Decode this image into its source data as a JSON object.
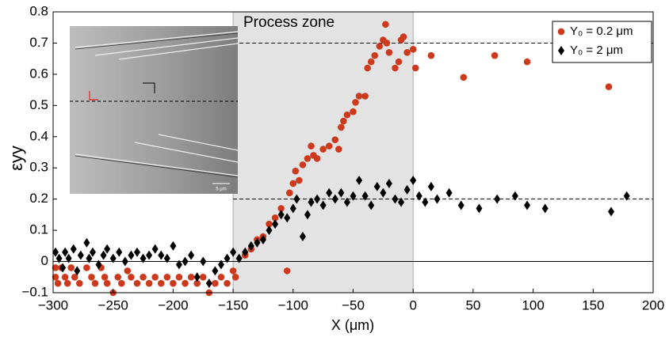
{
  "chart_data": {
    "type": "scatter",
    "annotation": "Process zone",
    "xlabel": "X (μm)",
    "ylabel": "εyy",
    "inset_scale_label": "5 μm",
    "xlim": [
      -300,
      200
    ],
    "ylim": [
      -0.1,
      0.8
    ],
    "xticks": [
      {
        "value": -300,
        "label": "−300"
      },
      {
        "value": -250,
        "label": "−250"
      },
      {
        "value": -200,
        "label": "−200"
      },
      {
        "value": -150,
        "label": "−150"
      },
      {
        "value": -100,
        "label": "−100"
      },
      {
        "value": -50,
        "label": "−50"
      },
      0,
      50,
      100,
      150,
      200
    ],
    "yticks": [
      {
        "value": -0.1,
        "label": "−0.1"
      },
      0,
      0.1,
      0.2,
      0.3,
      0.4,
      0.5,
      0.6,
      0.7,
      0.8
    ],
    "shaded_region": [
      -150,
      0
    ],
    "reference_lines": [
      0.7,
      0.2
    ],
    "legend": "upper right",
    "series": [
      {
        "name": "Y₀ = 0.2 μm",
        "color": "#cc3a1e",
        "marker": "circle",
        "x": [
          -298,
          -298,
          -296,
          -293,
          -290,
          -288,
          -285,
          -282,
          -278,
          -272,
          -268,
          -265,
          -260,
          -257,
          -255,
          -250,
          -246,
          -243,
          -238,
          -235,
          -230,
          -225,
          -220,
          -215,
          -210,
          -205,
          -200,
          -195,
          -190,
          -185,
          -180,
          -175,
          -170,
          -165,
          -160,
          -155,
          -150,
          -148,
          -140,
          -135,
          -130,
          -125,
          -120,
          -115,
          -110,
          -105,
          -103,
          -100,
          -98,
          -95,
          -92,
          -88,
          -85,
          -83,
          -80,
          -75,
          -70,
          -65,
          -62,
          -60,
          -58,
          -55,
          -50,
          -48,
          -45,
          -40,
          -38,
          -35,
          -32,
          -28,
          -25,
          -23,
          -22,
          -20,
          -15,
          -12,
          -10,
          -8,
          -5,
          0,
          2,
          15,
          42,
          68,
          95,
          163
        ],
        "values": [
          -0.02,
          -0.05,
          -0.07,
          -0.02,
          -0.05,
          -0.07,
          -0.02,
          -0.05,
          -0.07,
          -0.02,
          -0.05,
          -0.07,
          -0.02,
          -0.05,
          -0.07,
          -0.1,
          -0.05,
          -0.07,
          -0.03,
          -0.05,
          -0.07,
          -0.05,
          -0.07,
          -0.05,
          -0.07,
          -0.05,
          -0.07,
          -0.05,
          -0.07,
          -0.05,
          -0.07,
          -0.05,
          -0.1,
          -0.07,
          -0.05,
          -0.07,
          -0.03,
          -0.05,
          0.02,
          0.04,
          0.07,
          0.08,
          0.12,
          0.14,
          0.17,
          -0.03,
          0.22,
          0.25,
          0.29,
          0.26,
          0.31,
          0.33,
          0.37,
          0.34,
          0.33,
          0.36,
          0.37,
          0.39,
          0.36,
          0.43,
          0.45,
          0.47,
          0.48,
          0.51,
          0.53,
          0.53,
          0.62,
          0.64,
          0.66,
          0.69,
          0.71,
          0.76,
          0.7,
          0.67,
          0.62,
          0.64,
          0.71,
          0.72,
          0.67,
          0.68,
          0.62,
          0.66,
          0.59,
          0.66,
          0.64,
          0.56
        ]
      },
      {
        "name": "Y₀ = 2 μm",
        "color": "#000000",
        "marker": "diamond",
        "x": [
          -298,
          -295,
          -292,
          -290,
          -287,
          -283,
          -280,
          -277,
          -272,
          -270,
          -267,
          -262,
          -258,
          -255,
          -250,
          -245,
          -240,
          -235,
          -230,
          -225,
          -220,
          -215,
          -210,
          -205,
          -200,
          -195,
          -190,
          -185,
          -180,
          -175,
          -170,
          -165,
          -160,
          -155,
          -150,
          -145,
          -140,
          -135,
          -130,
          -125,
          -120,
          -115,
          -110,
          -105,
          -100,
          -97,
          -92,
          -88,
          -85,
          -80,
          -75,
          -70,
          -65,
          -60,
          -55,
          -50,
          -45,
          -40,
          -35,
          -30,
          -25,
          -20,
          -15,
          -10,
          -5,
          0,
          5,
          10,
          15,
          20,
          30,
          40,
          55,
          70,
          85,
          95,
          110,
          165,
          178
        ],
        "values": [
          0.03,
          0.01,
          -0.02,
          0.03,
          0.01,
          0.04,
          -0.03,
          0.02,
          0.06,
          0.01,
          0.03,
          -0.01,
          0.02,
          0.04,
          0.01,
          0.03,
          0.0,
          0.02,
          0.03,
          0.01,
          0.02,
          0.04,
          0.02,
          0.01,
          0.05,
          -0.01,
          0.0,
          0.02,
          -0.05,
          0.0,
          -0.07,
          -0.03,
          -0.01,
          0.01,
          0.03,
          0.01,
          0.03,
          0.05,
          0.06,
          0.07,
          0.1,
          0.12,
          0.15,
          0.14,
          0.17,
          0.2,
          0.08,
          0.15,
          0.19,
          0.2,
          0.18,
          0.22,
          0.2,
          0.22,
          0.19,
          0.21,
          0.26,
          0.21,
          0.18,
          0.24,
          0.22,
          0.25,
          0.2,
          0.19,
          0.23,
          0.26,
          0.21,
          0.19,
          0.24,
          0.2,
          0.22,
          0.18,
          0.17,
          0.2,
          0.21,
          0.18,
          0.17,
          0.16,
          0.21
        ]
      }
    ]
  }
}
